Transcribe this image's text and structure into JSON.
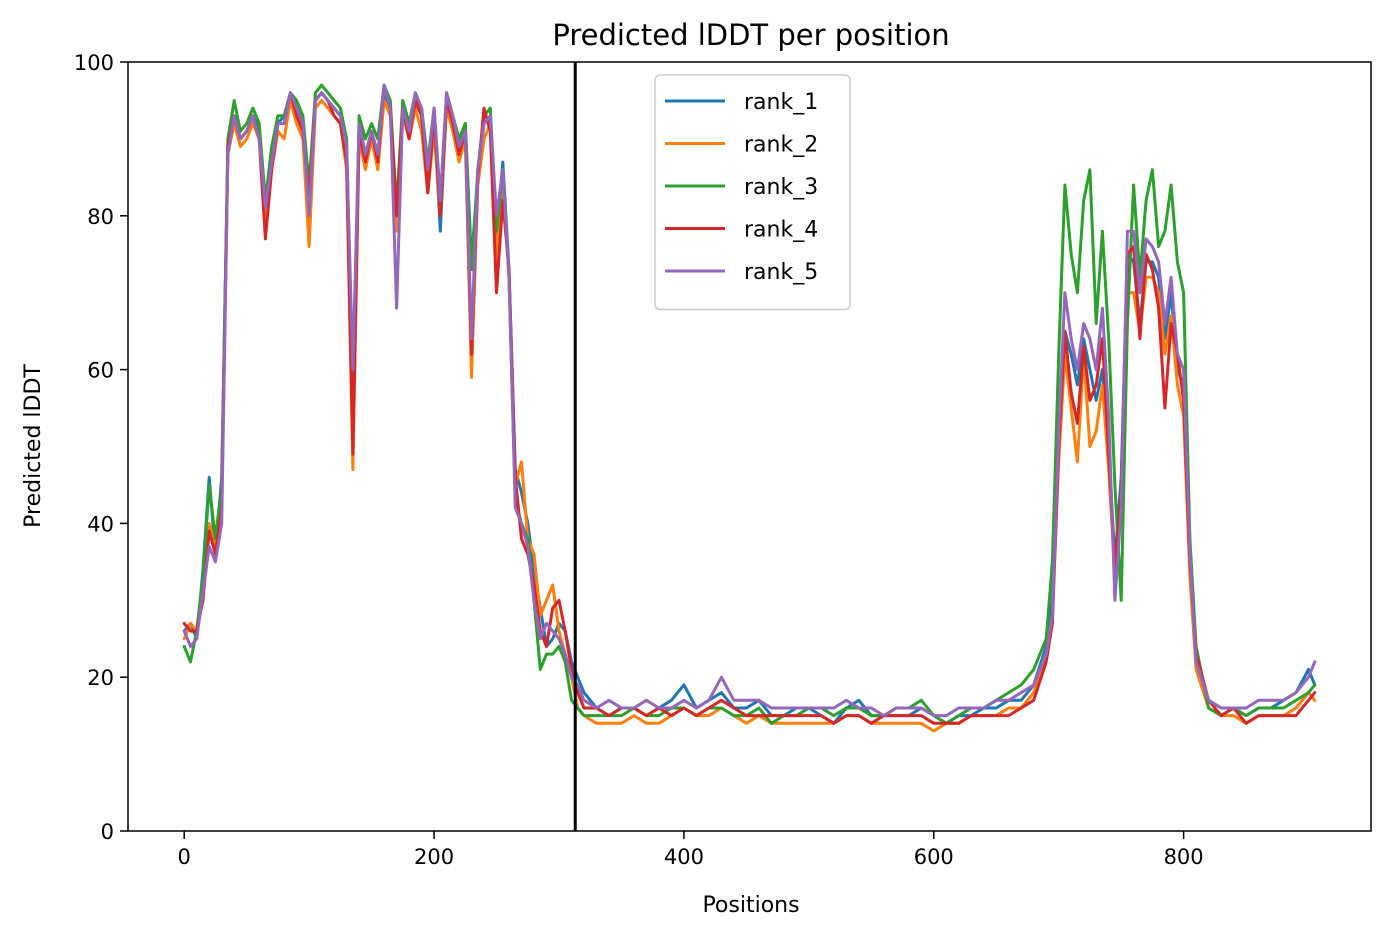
{
  "chart_data": {
    "type": "line",
    "title": "Predicted lDDT per position",
    "xlabel": "Positions",
    "ylabel": "Predicted lDDT",
    "xlim": [
      -45,
      950
    ],
    "ylim": [
      0,
      100
    ],
    "xticks": [
      0,
      200,
      400,
      600,
      800
    ],
    "yticks": [
      0,
      20,
      40,
      60,
      80,
      100
    ],
    "grid": false,
    "legend_position": "upper-center",
    "vertical_marker_x": 313,
    "x": [
      0,
      5,
      10,
      15,
      20,
      25,
      30,
      35,
      40,
      45,
      50,
      55,
      60,
      65,
      70,
      75,
      80,
      85,
      90,
      95,
      100,
      105,
      110,
      115,
      120,
      125,
      130,
      135,
      140,
      145,
      150,
      155,
      160,
      165,
      170,
      175,
      180,
      185,
      190,
      195,
      200,
      205,
      210,
      215,
      220,
      225,
      230,
      235,
      240,
      245,
      250,
      255,
      260,
      265,
      270,
      275,
      280,
      285,
      290,
      295,
      300,
      305,
      310,
      315,
      320,
      330,
      340,
      350,
      360,
      370,
      380,
      390,
      400,
      410,
      420,
      430,
      440,
      450,
      460,
      470,
      480,
      490,
      500,
      510,
      520,
      530,
      540,
      550,
      560,
      570,
      580,
      590,
      600,
      610,
      620,
      630,
      640,
      650,
      660,
      670,
      680,
      690,
      695,
      700,
      705,
      710,
      715,
      720,
      725,
      730,
      735,
      740,
      745,
      750,
      755,
      760,
      765,
      770,
      775,
      780,
      785,
      790,
      795,
      800,
      805,
      810,
      820,
      830,
      840,
      850,
      860,
      870,
      880,
      890,
      900,
      905
    ],
    "series": [
      {
        "name": "rank_1",
        "color": "#1f77b4",
        "values": [
          26,
          27,
          25,
          34,
          46,
          36,
          46,
          89,
          93,
          90,
          91,
          93,
          91,
          82,
          88,
          92,
          93,
          96,
          94,
          92,
          83,
          95,
          96,
          95,
          94,
          93,
          88,
          54,
          92,
          88,
          91,
          88,
          96,
          94,
          80,
          94,
          91,
          95,
          93,
          85,
          93,
          78,
          95,
          92,
          89,
          92,
          74,
          85,
          92,
          93,
          77,
          87,
          73,
          47,
          44,
          40,
          34,
          29,
          24,
          25,
          27,
          26,
          22,
          20,
          18,
          16,
          15,
          16,
          16,
          15,
          16,
          17,
          19,
          16,
          17,
          18,
          16,
          16,
          17,
          15,
          15,
          16,
          16,
          15,
          14,
          16,
          17,
          15,
          15,
          15,
          15,
          16,
          15,
          14,
          15,
          15,
          16,
          16,
          17,
          17,
          19,
          24,
          30,
          50,
          65,
          62,
          58,
          64,
          60,
          56,
          60,
          50,
          35,
          46,
          75,
          74,
          66,
          74,
          74,
          72,
          64,
          70,
          60,
          58,
          35,
          22,
          17,
          16,
          16,
          15,
          16,
          16,
          17,
          18,
          21,
          19
        ]
      },
      {
        "name": "rank_2",
        "color": "#ff7f0e",
        "values": [
          25,
          27,
          26,
          33,
          40,
          37,
          44,
          88,
          92,
          89,
          90,
          92,
          90,
          80,
          86,
          91,
          90,
          95,
          92,
          90,
          76,
          94,
          95,
          94,
          93,
          92,
          86,
          47,
          90,
          86,
          90,
          86,
          95,
          93,
          78,
          93,
          90,
          94,
          91,
          83,
          91,
          80,
          94,
          91,
          87,
          90,
          59,
          84,
          90,
          92,
          74,
          85,
          72,
          45,
          48,
          38,
          36,
          28,
          30,
          32,
          26,
          23,
          20,
          16,
          15,
          14,
          14,
          14,
          15,
          14,
          14,
          15,
          16,
          15,
          15,
          16,
          15,
          14,
          15,
          14,
          14,
          14,
          14,
          14,
          14,
          15,
          15,
          14,
          14,
          14,
          14,
          14,
          13,
          14,
          14,
          15,
          15,
          15,
          16,
          16,
          18,
          23,
          28,
          48,
          62,
          55,
          48,
          62,
          50,
          52,
          58,
          47,
          33,
          44,
          70,
          70,
          65,
          72,
          72,
          70,
          62,
          67,
          58,
          54,
          33,
          21,
          16,
          15,
          15,
          14,
          15,
          15,
          15,
          16,
          18,
          17
        ]
      },
      {
        "name": "rank_3",
        "color": "#2ca02c",
        "values": [
          24,
          22,
          26,
          33,
          45,
          38,
          45,
          90,
          95,
          91,
          92,
          94,
          92,
          82,
          89,
          93,
          93,
          96,
          95,
          93,
          84,
          96,
          97,
          96,
          95,
          94,
          90,
          56,
          93,
          90,
          92,
          90,
          97,
          95,
          81,
          95,
          92,
          96,
          94,
          87,
          94,
          82,
          96,
          93,
          90,
          92,
          73,
          86,
          93,
          94,
          78,
          86,
          72,
          43,
          40,
          38,
          30,
          21,
          23,
          23,
          24,
          22,
          17,
          16,
          15,
          15,
          15,
          15,
          16,
          15,
          15,
          16,
          16,
          15,
          16,
          16,
          15,
          15,
          16,
          14,
          15,
          15,
          16,
          16,
          15,
          16,
          16,
          15,
          15,
          16,
          16,
          17,
          15,
          14,
          15,
          16,
          16,
          17,
          18,
          19,
          21,
          25,
          35,
          62,
          84,
          75,
          70,
          82,
          86,
          66,
          78,
          64,
          45,
          30,
          66,
          84,
          72,
          82,
          86,
          76,
          78,
          84,
          74,
          70,
          38,
          24,
          16,
          15,
          16,
          15,
          16,
          16,
          16,
          17,
          18,
          19
        ]
      },
      {
        "name": "rank_4",
        "color": "#d62728",
        "values": [
          27,
          26,
          26,
          30,
          39,
          36,
          42,
          89,
          93,
          90,
          91,
          93,
          90,
          77,
          86,
          92,
          92,
          96,
          93,
          91,
          82,
          95,
          96,
          95,
          93,
          92,
          87,
          49,
          91,
          87,
          91,
          87,
          97,
          94,
          80,
          94,
          90,
          95,
          93,
          83,
          93,
          80,
          95,
          92,
          88,
          91,
          62,
          85,
          94,
          91,
          70,
          82,
          73,
          46,
          38,
          36,
          32,
          26,
          24,
          29,
          30,
          26,
          21,
          18,
          16,
          16,
          15,
          16,
          16,
          15,
          16,
          15,
          16,
          15,
          16,
          17,
          16,
          15,
          15,
          15,
          15,
          15,
          15,
          15,
          14,
          15,
          15,
          14,
          15,
          15,
          15,
          15,
          14,
          14,
          14,
          15,
          15,
          15,
          15,
          16,
          17,
          22,
          27,
          50,
          65,
          57,
          53,
          63,
          56,
          58,
          64,
          49,
          34,
          44,
          75,
          76,
          64,
          75,
          73,
          68,
          55,
          66,
          62,
          56,
          35,
          23,
          17,
          15,
          16,
          14,
          15,
          15,
          15,
          15,
          17,
          18
        ]
      },
      {
        "name": "rank_5",
        "color": "#9467bd",
        "values": [
          26,
          24,
          25,
          31,
          37,
          35,
          40,
          88,
          93,
          90,
          91,
          93,
          90,
          81,
          87,
          92,
          92,
          96,
          94,
          92,
          80,
          95,
          96,
          95,
          94,
          93,
          89,
          60,
          92,
          88,
          91,
          88,
          97,
          94,
          68,
          94,
          91,
          96,
          94,
          86,
          94,
          82,
          96,
          93,
          89,
          91,
          64,
          86,
          92,
          93,
          80,
          86,
          72,
          42,
          40,
          37,
          30,
          25,
          27,
          26,
          25,
          23,
          20,
          19,
          17,
          16,
          17,
          16,
          16,
          17,
          16,
          16,
          17,
          16,
          17,
          20,
          17,
          17,
          17,
          16,
          16,
          16,
          16,
          16,
          16,
          17,
          16,
          16,
          15,
          16,
          16,
          16,
          15,
          15,
          16,
          16,
          16,
          17,
          17,
          18,
          19,
          23,
          28,
          52,
          70,
          64,
          60,
          66,
          64,
          60,
          68,
          54,
          30,
          42,
          78,
          78,
          70,
          77,
          76,
          74,
          66,
          72,
          62,
          60,
          36,
          22,
          17,
          16,
          16,
          16,
          17,
          17,
          17,
          18,
          20,
          22
        ]
      }
    ]
  }
}
